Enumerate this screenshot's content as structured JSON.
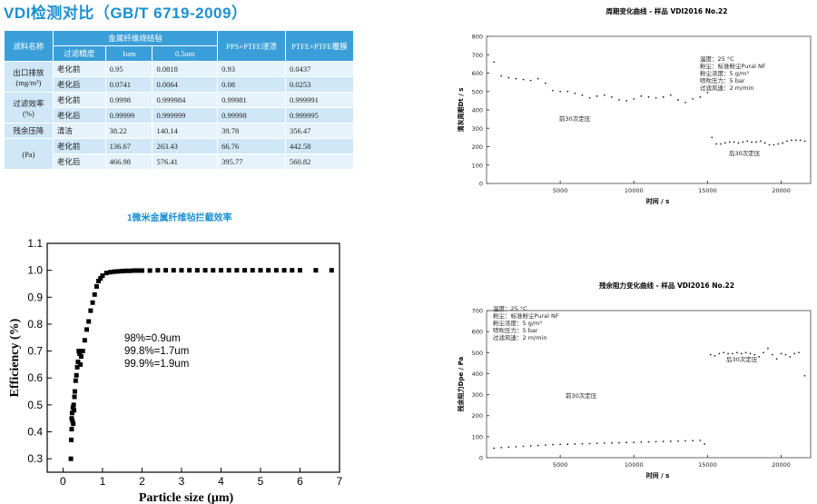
{
  "title": "VDI检测对比（GB/T 6719-2009）",
  "table": {
    "h_material": "滤料名称",
    "h_metal_felt": "金属纤维烧结毡",
    "h_pps": "PPS+PTFE浸渍",
    "h_ptfe": "PTFE+PTFE覆膜",
    "h_precision": "过滤精度",
    "h_1um": "1um",
    "h_05um": "0.5um",
    "rows": [
      {
        "group": "出口排放",
        "unit": "(mg/m³)",
        "state": "老化前",
        "c1": "0.95",
        "c2": "0.0818",
        "c3": "0.93",
        "c4": "0.0437"
      },
      {
        "state": "老化后",
        "c1": "0.0741",
        "c2": "0.0064",
        "c3": "0.08",
        "c4": "0.0253"
      },
      {
        "group": "过滤效率",
        "unit": "(%)",
        "state": "老化前",
        "c1": "0.9998",
        "c2": "0.999984",
        "c3": "0.99981",
        "c4": "0.999991"
      },
      {
        "state": "老化后",
        "c1": "0.99999",
        "c2": "0.999999",
        "c3": "0.99998",
        "c4": "0.999995"
      },
      {
        "group": "残余压降",
        "state": "清洁",
        "c1": "38.22",
        "c2": "140.14",
        "c3": "39.78",
        "c4": "356.47"
      },
      {
        "group": "(Pa)",
        "state": "老化前",
        "c1": "136.67",
        "c2": "263.43",
        "c3": "66.76",
        "c4": "442.58"
      },
      {
        "state": "老化后",
        "c1": "466.98",
        "c2": "576.41",
        "c3": "395.77",
        "c4": "560.82"
      }
    ]
  },
  "chart_data": [
    {
      "id": "efficiency",
      "type": "scatter",
      "title": "1微米金属纤维毡拦截效率",
      "xlabel": "Particle size (μm)",
      "ylabel": "Efficiency (%)",
      "xlim": [
        -0.4,
        7
      ],
      "ylim": [
        0.25,
        1.1
      ],
      "xticks": [
        0,
        1,
        2,
        3,
        4,
        5,
        6,
        7
      ],
      "yticks": [
        0.3,
        0.4,
        0.5,
        0.6,
        0.7,
        0.8,
        0.9,
        1.0,
        1.1
      ],
      "ytick_labels": [
        "0.3",
        "0.4",
        "0.5",
        "0.6",
        "0.7",
        "0.8",
        "0.9",
        "1.0",
        "1.1"
      ],
      "annotations": [
        "98%=0.9um",
        "99.8%=1.7um",
        "99.9%=1.9um"
      ],
      "x": [
        0.2,
        0.21,
        0.22,
        0.22,
        0.23,
        0.24,
        0.25,
        0.26,
        0.27,
        0.28,
        0.29,
        0.3,
        0.32,
        0.34,
        0.36,
        0.38,
        0.4,
        0.42,
        0.44,
        0.46,
        0.5,
        0.55,
        0.6,
        0.65,
        0.7,
        0.75,
        0.8,
        0.85,
        0.9,
        0.95,
        1.0,
        1.1,
        1.2,
        1.3,
        1.4,
        1.5,
        1.6,
        1.7,
        1.8,
        1.9,
        2.0,
        2.2,
        2.4,
        2.6,
        2.8,
        3.0,
        3.2,
        3.4,
        3.6,
        3.8,
        4.0,
        4.2,
        4.4,
        4.6,
        4.8,
        5.0,
        5.2,
        5.4,
        5.6,
        5.8,
        6.0,
        6.4,
        6.8
      ],
      "y": [
        0.3,
        0.37,
        0.41,
        0.45,
        0.47,
        0.44,
        0.49,
        0.43,
        0.5,
        0.48,
        0.53,
        0.55,
        0.59,
        0.61,
        0.64,
        0.66,
        0.7,
        0.69,
        0.65,
        0.68,
        0.7,
        0.74,
        0.78,
        0.81,
        0.85,
        0.88,
        0.91,
        0.94,
        0.96,
        0.97,
        0.98,
        0.99,
        0.993,
        0.995,
        0.996,
        0.997,
        0.998,
        0.998,
        0.999,
        0.999,
        0.999,
        0.999,
        1.0,
        1.0,
        1.0,
        1.0,
        1.0,
        1.0,
        1.0,
        1.0,
        1.0,
        1.0,
        1.0,
        1.0,
        1.0,
        1.0,
        1.0,
        1.0,
        1.0,
        1.0,
        1.0,
        1.0,
        1.0
      ]
    },
    {
      "id": "cycle",
      "type": "scatter",
      "title": "周期变化曲线 - 样品 VDI2016 No.22",
      "xlabel": "时间 / s",
      "ylabel": "清灰周期Dt / s",
      "xlim": [
        0,
        22000
      ],
      "ylim": [
        0,
        800
      ],
      "xticks": [
        5000,
        10000,
        15000,
        20000
      ],
      "yticks": [
        0,
        100,
        200,
        300,
        400,
        500,
        600,
        700,
        800
      ],
      "legend": [
        "温度：25 °C",
        "粉尘：标准粉尘Pural NF",
        "粉尘浓度：5 g/m³",
        "喷吹压力：5 bar",
        "过滤风速：2 m/min"
      ],
      "annotations": [
        "前30次定压",
        "后30次定压"
      ],
      "x": [
        500,
        1000,
        1500,
        2000,
        2500,
        3000,
        3500,
        4000,
        4500,
        5000,
        5500,
        6000,
        6500,
        7000,
        7500,
        8000,
        8500,
        9000,
        9500,
        10000,
        10500,
        11000,
        11500,
        12000,
        12500,
        13000,
        13500,
        14000,
        14500,
        15000,
        15300,
        15600,
        15900,
        16200,
        16500,
        16800,
        17100,
        17400,
        17700,
        18000,
        18300,
        18600,
        18900,
        19200,
        19500,
        19800,
        20100,
        20400,
        20700,
        21000,
        21300,
        21600
      ],
      "y": [
        660,
        585,
        575,
        570,
        565,
        560,
        570,
        545,
        505,
        500,
        500,
        490,
        480,
        465,
        475,
        480,
        470,
        455,
        450,
        460,
        475,
        470,
        465,
        470,
        480,
        455,
        440,
        460,
        470,
        495,
        250,
        215,
        215,
        220,
        225,
        225,
        220,
        225,
        230,
        225,
        225,
        230,
        220,
        210,
        210,
        215,
        220,
        230,
        235,
        235,
        235,
        230
      ]
    },
    {
      "id": "residual",
      "type": "scatter",
      "title": "残余阻力变化曲线 - 样品 VDI2016 No.22",
      "xlabel": "时间 / s",
      "ylabel": "残余阻力Dpe / Pa",
      "xlim": [
        0,
        22000
      ],
      "ylim": [
        0,
        700
      ],
      "xticks": [
        5000,
        10000,
        15000,
        20000
      ],
      "yticks": [
        0,
        100,
        200,
        300,
        400,
        500,
        600,
        700
      ],
      "legend": [
        "温度：25 °C",
        "粉尘：标准粉尘Pural NF",
        "粉尘浓度：5 g/m³",
        "喷吹压力：5 bar",
        "过滤风速：2 m/min"
      ],
      "annotations": [
        "前30次定压",
        "后30次定压"
      ],
      "x": [
        500,
        1000,
        1500,
        2000,
        2500,
        3000,
        3500,
        4000,
        4500,
        5000,
        5500,
        6000,
        6500,
        7000,
        7500,
        8000,
        8500,
        9000,
        9500,
        10000,
        10500,
        11000,
        11500,
        12000,
        12500,
        13000,
        13500,
        14000,
        14500,
        14800,
        15200,
        15500,
        15800,
        16100,
        16400,
        16700,
        17000,
        17300,
        17600,
        17900,
        18200,
        18500,
        18800,
        19100,
        19400,
        19700,
        20000,
        20300,
        20600,
        20900,
        21200,
        21600
      ],
      "y": [
        45,
        48,
        50,
        52,
        54,
        56,
        58,
        60,
        62,
        63,
        64,
        65,
        66,
        67,
        68,
        69,
        70,
        71,
        72,
        73,
        74,
        75,
        76,
        77,
        78,
        79,
        80,
        81,
        82,
        65,
        490,
        485,
        495,
        500,
        495,
        495,
        500,
        495,
        500,
        495,
        490,
        480,
        500,
        520,
        490,
        470,
        495,
        490,
        480,
        495,
        500,
        390
      ]
    }
  ]
}
